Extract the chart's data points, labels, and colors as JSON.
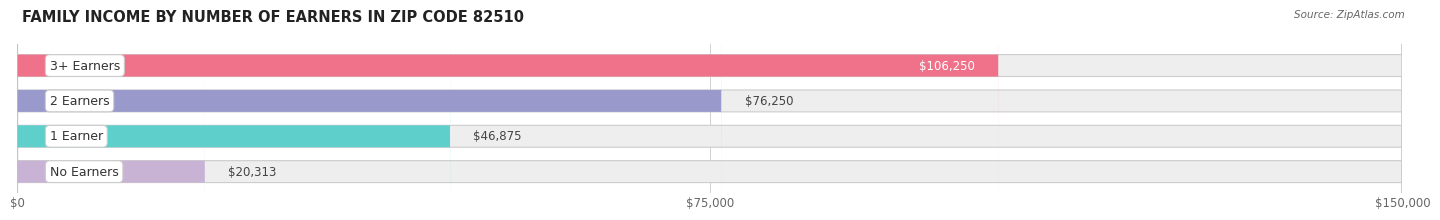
{
  "title": "FAMILY INCOME BY NUMBER OF EARNERS IN ZIP CODE 82510",
  "source": "Source: ZipAtlas.com",
  "categories": [
    "No Earners",
    "1 Earner",
    "2 Earners",
    "3+ Earners"
  ],
  "values": [
    20313,
    46875,
    76250,
    106250
  ],
  "bar_colors": [
    "#c9b3d5",
    "#5ecfca",
    "#9999cc",
    "#f0728a"
  ],
  "bar_bg_color": "#eeeeee",
  "value_labels": [
    "$20,313",
    "$46,875",
    "$76,250",
    "$106,250"
  ],
  "label_inside_bar": [
    false,
    false,
    false,
    true
  ],
  "xlim": [
    0,
    150000
  ],
  "xticks": [
    0,
    75000,
    150000
  ],
  "xtick_labels": [
    "$0",
    "$75,000",
    "$150,000"
  ],
  "background_color": "#ffffff",
  "bar_height": 0.62,
  "title_fontsize": 10.5,
  "label_fontsize": 9,
  "value_fontsize": 8.5,
  "axis_fontsize": 8.5
}
